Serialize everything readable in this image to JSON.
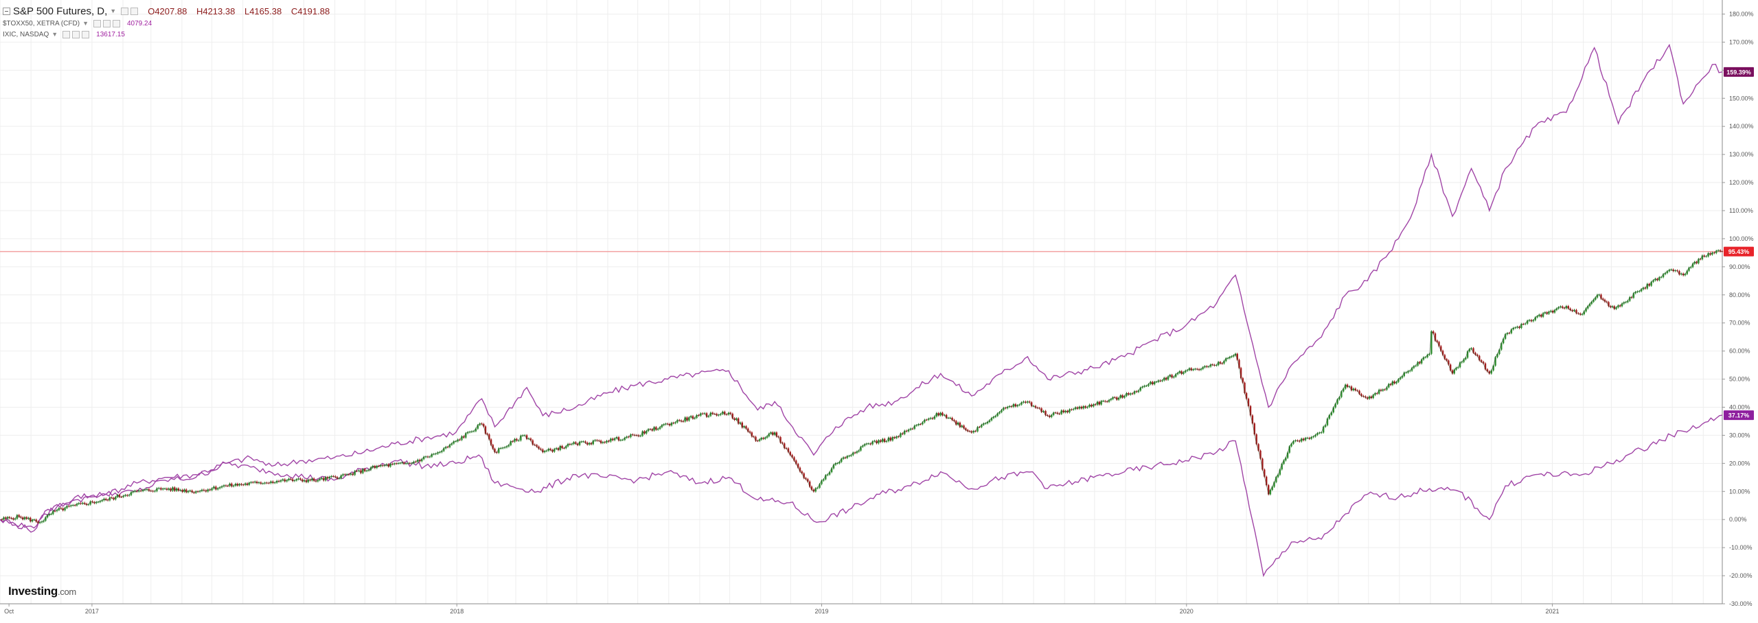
{
  "legend": {
    "main": {
      "symbol": "S&P 500 Futures, D,",
      "open": "O4207.88",
      "high": "H4213.38",
      "low": "L4165.38",
      "close": "C4191.88"
    },
    "overlays": [
      {
        "symbol": "$TOXX50, XETRA (CFD)",
        "value": "4079.24"
      },
      {
        "symbol": "IXIC, NASDAQ",
        "value": "13617.15"
      }
    ]
  },
  "logo": {
    "brand": "Investing",
    "suffix": ".com"
  },
  "colors": {
    "up": "#2e8b2e",
    "down": "#a11d1d",
    "overlay": "#a044a6",
    "last_price_line": "#f2a0a0",
    "badge_main": "#e8232a",
    "badge_overlay_nasdaq": "#7a0f5e",
    "badge_overlay_stoxx": "#8e1f9e",
    "grid": "#eeeeee",
    "axis_text": "#555555"
  },
  "chart_data": {
    "type": "line",
    "x_range": [
      "2016-10-01",
      "2021-06-20"
    ],
    "ylim": [
      -30,
      185
    ],
    "y_unit": "%",
    "y_ticks": [
      "180.00%",
      "170.00%",
      "160.00%",
      "150.00%",
      "140.00%",
      "130.00%",
      "120.00%",
      "110.00%",
      "100.00%",
      "90.00%",
      "80.00%",
      "70.00%",
      "60.00%",
      "50.00%",
      "40.00%",
      "30.00%",
      "20.00%",
      "10.00%",
      "0.00%",
      "-10.00%",
      "-20.00%",
      "-30.00%"
    ],
    "x_ticks": [
      {
        "date": "2016-10-10",
        "label": "Oct"
      },
      {
        "date": "2017-01-01",
        "label": "2017"
      },
      {
        "date": "2018-01-01",
        "label": "2018"
      },
      {
        "date": "2019-01-01",
        "label": "2019"
      },
      {
        "date": "2020-01-01",
        "label": "2020"
      },
      {
        "date": "2021-01-01",
        "label": "2021"
      }
    ],
    "grid": true,
    "legend_position": "top-left",
    "price_line": 95.43,
    "badges": [
      {
        "value": 159.39,
        "label": "159.39%",
        "style": "badge_overlay_nasdaq"
      },
      {
        "value": 95.43,
        "label": "95.43%",
        "style": "badge_main"
      },
      {
        "value": 37.17,
        "label": "37.17%",
        "style": "badge_overlay_stoxx"
      }
    ],
    "series": [
      {
        "name": "S&P 500 Futures, D,",
        "style": "candlestick",
        "points": [
          [
            "2016-10-01",
            0
          ],
          [
            "2016-10-20",
            1
          ],
          [
            "2016-11-10",
            -1
          ],
          [
            "2016-11-25",
            3
          ],
          [
            "2016-12-15",
            5
          ],
          [
            "2017-01-15",
            7
          ],
          [
            "2017-02-15",
            10
          ],
          [
            "2017-03-15",
            11
          ],
          [
            "2017-04-15",
            10
          ],
          [
            "2017-05-15",
            12
          ],
          [
            "2017-06-15",
            13
          ],
          [
            "2017-07-15",
            14
          ],
          [
            "2017-08-15",
            14
          ],
          [
            "2017-09-15",
            16
          ],
          [
            "2017-10-15",
            19
          ],
          [
            "2017-11-15",
            20
          ],
          [
            "2017-12-15",
            24
          ],
          [
            "2018-01-26",
            34
          ],
          [
            "2018-02-08",
            24
          ],
          [
            "2018-03-10",
            30
          ],
          [
            "2018-03-28",
            24
          ],
          [
            "2018-04-30",
            27
          ],
          [
            "2018-05-31",
            28
          ],
          [
            "2018-06-30",
            30
          ],
          [
            "2018-07-31",
            34
          ],
          [
            "2018-08-31",
            37
          ],
          [
            "2018-09-30",
            38
          ],
          [
            "2018-10-29",
            28
          ],
          [
            "2018-11-15",
            31
          ],
          [
            "2018-12-24",
            10
          ],
          [
            "2019-01-15",
            20
          ],
          [
            "2019-02-15",
            27
          ],
          [
            "2019-03-15",
            29
          ],
          [
            "2019-04-30",
            38
          ],
          [
            "2019-05-31",
            31
          ],
          [
            "2019-06-30",
            39
          ],
          [
            "2019-07-26",
            42
          ],
          [
            "2019-08-15",
            37
          ],
          [
            "2019-09-30",
            41
          ],
          [
            "2019-10-31",
            44
          ],
          [
            "2019-11-30",
            49
          ],
          [
            "2019-12-31",
            53
          ],
          [
            "2020-01-31",
            55
          ],
          [
            "2020-02-19",
            59
          ],
          [
            "2020-03-01",
            43
          ],
          [
            "2020-03-23",
            9
          ],
          [
            "2020-04-15",
            27
          ],
          [
            "2020-05-15",
            31
          ],
          [
            "2020-06-08",
            48
          ],
          [
            "2020-06-30",
            43
          ],
          [
            "2020-07-31",
            50
          ],
          [
            "2020-08-31",
            59
          ],
          [
            "2020-09-02",
            67
          ],
          [
            "2020-09-23",
            52
          ],
          [
            "2020-10-12",
            61
          ],
          [
            "2020-10-30",
            52
          ],
          [
            "2020-11-15",
            66
          ],
          [
            "2020-12-15",
            72
          ],
          [
            "2021-01-15",
            76
          ],
          [
            "2021-01-29",
            73
          ],
          [
            "2021-02-15",
            80
          ],
          [
            "2021-03-04",
            75
          ],
          [
            "2021-03-31",
            82
          ],
          [
            "2021-04-30",
            89
          ],
          [
            "2021-05-12",
            87
          ],
          [
            "2021-05-31",
            94
          ],
          [
            "2021-06-20",
            95.43
          ]
        ]
      },
      {
        "name": "IXIC, NASDAQ",
        "style": "line",
        "points": [
          [
            "2016-10-01",
            0
          ],
          [
            "2016-11-04",
            -3
          ],
          [
            "2016-11-15",
            3
          ],
          [
            "2016-12-15",
            7
          ],
          [
            "2017-01-15",
            9
          ],
          [
            "2017-02-15",
            13
          ],
          [
            "2017-03-15",
            15
          ],
          [
            "2017-04-15",
            16
          ],
          [
            "2017-05-15",
            20
          ],
          [
            "2017-06-09",
            22
          ],
          [
            "2017-06-30",
            19
          ],
          [
            "2017-07-31",
            21
          ],
          [
            "2017-08-31",
            22
          ],
          [
            "2017-09-30",
            24
          ],
          [
            "2017-10-31",
            27
          ],
          [
            "2017-11-30",
            29
          ],
          [
            "2017-12-31",
            31
          ],
          [
            "2018-01-26",
            43
          ],
          [
            "2018-02-08",
            33
          ],
          [
            "2018-03-12",
            47
          ],
          [
            "2018-03-28",
            37
          ],
          [
            "2018-04-30",
            40
          ],
          [
            "2018-05-31",
            45
          ],
          [
            "2018-06-30",
            48
          ],
          [
            "2018-07-31",
            50
          ],
          [
            "2018-08-31",
            52
          ],
          [
            "2018-09-30",
            53
          ],
          [
            "2018-10-29",
            39
          ],
          [
            "2018-11-15",
            42
          ],
          [
            "2018-12-24",
            23
          ],
          [
            "2019-01-15",
            33
          ],
          [
            "2019-02-15",
            40
          ],
          [
            "2019-03-15",
            42
          ],
          [
            "2019-04-30",
            52
          ],
          [
            "2019-05-31",
            44
          ],
          [
            "2019-06-30",
            52
          ],
          [
            "2019-07-26",
            58
          ],
          [
            "2019-08-15",
            50
          ],
          [
            "2019-09-30",
            54
          ],
          [
            "2019-10-31",
            58
          ],
          [
            "2019-11-30",
            64
          ],
          [
            "2019-12-31",
            69
          ],
          [
            "2020-01-31",
            77
          ],
          [
            "2020-02-19",
            87
          ],
          [
            "2020-03-01",
            71
          ],
          [
            "2020-03-23",
            40
          ],
          [
            "2020-04-15",
            55
          ],
          [
            "2020-05-15",
            65
          ],
          [
            "2020-06-08",
            80
          ],
          [
            "2020-06-30",
            85
          ],
          [
            "2020-07-31",
            100
          ],
          [
            "2020-08-15",
            110
          ],
          [
            "2020-09-02",
            130
          ],
          [
            "2020-09-23",
            108
          ],
          [
            "2020-10-12",
            125
          ],
          [
            "2020-10-30",
            110
          ],
          [
            "2020-11-15",
            125
          ],
          [
            "2020-12-15",
            140
          ],
          [
            "2021-01-15",
            145
          ],
          [
            "2021-02-12",
            168
          ],
          [
            "2021-03-08",
            141
          ],
          [
            "2021-03-31",
            155
          ],
          [
            "2021-04-28",
            169
          ],
          [
            "2021-05-12",
            148
          ],
          [
            "2021-05-31",
            157
          ],
          [
            "2021-06-10",
            162
          ],
          [
            "2021-06-20",
            159.39
          ]
        ]
      },
      {
        "name": "$TOXX50, XETRA (CFD)",
        "style": "line",
        "points": [
          [
            "2016-10-01",
            0
          ],
          [
            "2016-11-04",
            -4
          ],
          [
            "2016-11-15",
            2
          ],
          [
            "2016-12-15",
            8
          ],
          [
            "2017-01-15",
            9
          ],
          [
            "2017-02-15",
            10
          ],
          [
            "2017-03-15",
            14
          ],
          [
            "2017-04-15",
            15
          ],
          [
            "2017-05-15",
            20
          ],
          [
            "2017-06-15",
            18
          ],
          [
            "2017-07-15",
            16
          ],
          [
            "2017-08-31",
            14
          ],
          [
            "2017-09-30",
            18
          ],
          [
            "2017-10-31",
            21
          ],
          [
            "2017-11-30",
            19
          ],
          [
            "2017-12-31",
            20
          ],
          [
            "2018-01-23",
            23
          ],
          [
            "2018-02-08",
            13
          ],
          [
            "2018-03-23",
            10
          ],
          [
            "2018-04-30",
            16
          ],
          [
            "2018-05-31",
            15
          ],
          [
            "2018-06-30",
            14
          ],
          [
            "2018-07-31",
            17
          ],
          [
            "2018-08-31",
            13
          ],
          [
            "2018-09-30",
            15
          ],
          [
            "2018-10-29",
            7
          ],
          [
            "2018-11-30",
            6
          ],
          [
            "2018-12-27",
            -1
          ],
          [
            "2019-01-31",
            4
          ],
          [
            "2019-02-28",
            9
          ],
          [
            "2019-03-31",
            12
          ],
          [
            "2019-04-30",
            17
          ],
          [
            "2019-05-31",
            11
          ],
          [
            "2019-06-30",
            15
          ],
          [
            "2019-07-31",
            17
          ],
          [
            "2019-08-15",
            11
          ],
          [
            "2019-09-30",
            15
          ],
          [
            "2019-10-31",
            17
          ],
          [
            "2019-11-30",
            19
          ],
          [
            "2019-12-31",
            21
          ],
          [
            "2020-01-31",
            24
          ],
          [
            "2020-02-19",
            28
          ],
          [
            "2020-03-01",
            10
          ],
          [
            "2020-03-18",
            -20
          ],
          [
            "2020-04-15",
            -8
          ],
          [
            "2020-05-15",
            -7
          ],
          [
            "2020-06-08",
            2
          ],
          [
            "2020-06-30",
            9
          ],
          [
            "2020-07-31",
            8
          ],
          [
            "2020-08-31",
            11
          ],
          [
            "2020-09-30",
            10
          ],
          [
            "2020-10-30",
            0
          ],
          [
            "2020-11-15",
            12
          ],
          [
            "2020-12-15",
            16
          ],
          [
            "2021-01-31",
            16
          ],
          [
            "2021-02-28",
            20
          ],
          [
            "2021-03-31",
            25
          ],
          [
            "2021-04-30",
            30
          ],
          [
            "2021-05-31",
            34
          ],
          [
            "2021-06-20",
            37.17
          ]
        ]
      }
    ]
  }
}
